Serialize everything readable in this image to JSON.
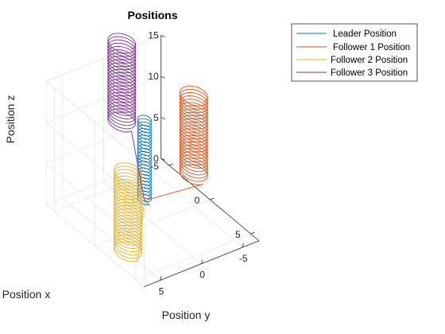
{
  "chart_data": {
    "type": "line3d",
    "title": "Positions",
    "xlabel": "Position x",
    "ylabel": "Position y",
    "zlabel": "Position z",
    "xlim": [
      -6,
      6
    ],
    "ylim": [
      -7,
      7
    ],
    "zlim": [
      0,
      15
    ],
    "xticks": [
      "-5",
      "0",
      "5"
    ],
    "yticks": [
      "5",
      "0",
      "-5"
    ],
    "zticks": [
      "0",
      "5",
      "10",
      "15"
    ],
    "grid": true,
    "legend": "top-right",
    "series": [
      {
        "name": "Leader Position",
        "color": "#0072BD",
        "center": [
          -2.5,
          -1.5
        ],
        "radius": 0.6,
        "z_range": [
          0,
          10
        ],
        "turns": 25,
        "start": [
          -2.5,
          -1.5,
          0
        ]
      },
      {
        "name": "Follower 1 Position",
        "color": "#D95319",
        "center": [
          -3,
          -8
        ],
        "radius": 1.2,
        "z_range": [
          0,
          10
        ],
        "turns": 25,
        "start": [
          -2.5,
          -1.5,
          0
        ]
      },
      {
        "name": "Follower 2 Position",
        "color": "#EDB120",
        "center": [
          2,
          5
        ],
        "radius": 1.2,
        "z_range": [
          0,
          10
        ],
        "turns": 25,
        "start": [
          -2.5,
          -1.5,
          0
        ]
      },
      {
        "name": "Follower 3 Position",
        "color": "#7E2F8E",
        "center": [
          -7,
          -3.2
        ],
        "radius": 1.2,
        "z_range": [
          5,
          15
        ],
        "turns": 25,
        "start": [
          -2.5,
          -1.5,
          0
        ]
      }
    ]
  }
}
